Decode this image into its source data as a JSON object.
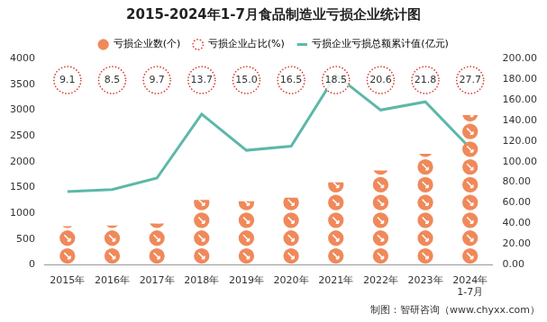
{
  "chart_data": {
    "type": "bar",
    "title": "2015-2024年1-7月食品制造业亏损企业统计图",
    "caption": "制图：智研咨询（www.chyxx.com）",
    "categories": [
      "2015年",
      "2016年",
      "2017年",
      "2018年",
      "2019年",
      "2020年",
      "2021年",
      "2022年",
      "2023年",
      "2024年\n1-7月"
    ],
    "series": [
      {
        "name": "亏损企业数(个)",
        "type": "bar",
        "color": "#f0895a",
        "marker": "circle",
        "values": [
          750,
          760,
          800,
          1260,
          1230,
          1300,
          1600,
          1830,
          2150,
          2900
        ]
      },
      {
        "name": "亏损企业占比(%)",
        "type": "text",
        "color": "#d9372b",
        "marker": "circle",
        "line_style": "dotted",
        "values": [
          9.1,
          8.5,
          9.7,
          13.7,
          15.0,
          16.5,
          18.5,
          20.6,
          21.8,
          27.7
        ],
        "value_labels": [
          "9.1",
          "8.5",
          "9.7",
          "13.7",
          "15.0",
          "16.5",
          "18.5",
          "20.6",
          "21.8",
          "27.7"
        ]
      },
      {
        "name": "亏损企业亏损总额累计值(亿元)",
        "type": "line",
        "color": "#5cb8a8",
        "axis": "y2",
        "values": [
          71,
          73,
          84,
          146,
          111,
          115,
          184,
          150,
          158,
          113
        ]
      }
    ],
    "ylim": [
      0,
      4000
    ],
    "yticks": [
      0,
      500,
      1000,
      1500,
      2000,
      2500,
      3000,
      3500,
      4000
    ],
    "y2lim": [
      0,
      200
    ],
    "y2ticks": [
      {
        "value": 0,
        "label": "0.00"
      },
      {
        "value": 20,
        "label": "20.00"
      },
      {
        "value": 40,
        "label": "40.00"
      },
      {
        "value": 60,
        "label": "60.00"
      },
      {
        "value": 80,
        "label": "80.00"
      },
      {
        "value": 100,
        "label": "100.00"
      },
      {
        "value": 120,
        "label": "120.00"
      },
      {
        "value": 140,
        "label": "140.00"
      },
      {
        "value": 160,
        "label": "160.00"
      },
      {
        "value": 180,
        "label": "180.00"
      },
      {
        "value": 200,
        "label": "200.00"
      }
    ],
    "grid": false,
    "legend": "top",
    "data_labels": true
  }
}
